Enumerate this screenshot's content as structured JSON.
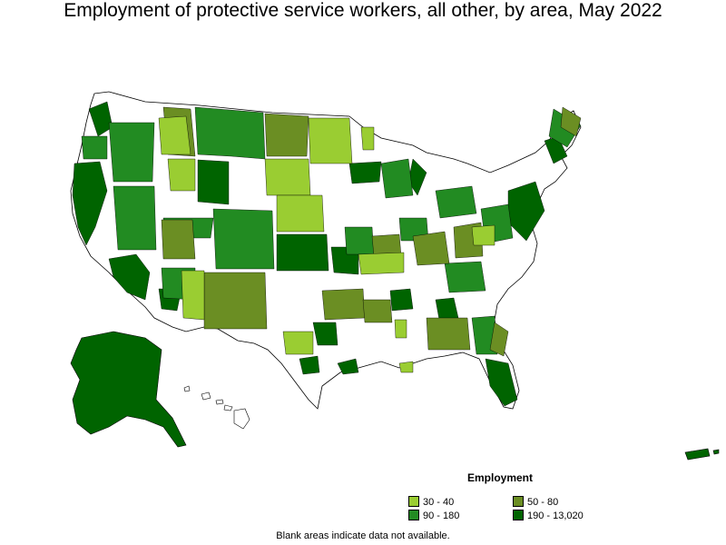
{
  "title": "Employment of protective service workers, all other, by area, May 2022",
  "legend": {
    "title": "Employment",
    "items": [
      {
        "label": "30 - 40",
        "color": "#9acd32"
      },
      {
        "label": "50 - 80",
        "color": "#6b8e23"
      },
      {
        "label": "90 - 180",
        "color": "#228b22"
      },
      {
        "label": "190 - 13,020",
        "color": "#006400"
      }
    ]
  },
  "footnote": "Blank areas indicate data not available.",
  "colors": {
    "no_data": "#ffffff",
    "outline": "#000000"
  }
}
